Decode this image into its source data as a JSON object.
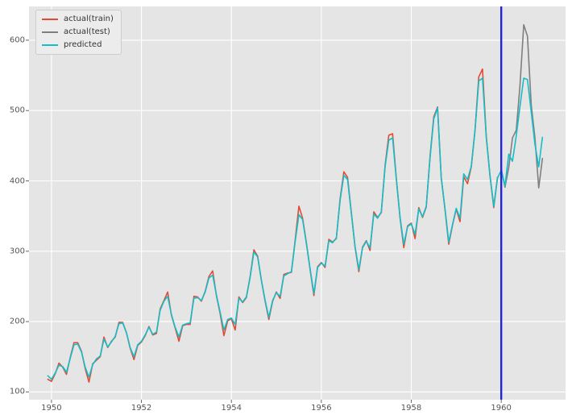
{
  "chart_data": {
    "type": "line",
    "title": "",
    "xlabel": "",
    "ylabel": "",
    "x_axis": {
      "ticks": [
        1950,
        1952,
        1954,
        1956,
        1958,
        1960
      ],
      "lim": [
        1949.5,
        1961.43
      ]
    },
    "y_axis": {
      "ticks": [
        100,
        200,
        300,
        400,
        500,
        600
      ],
      "lim": [
        89,
        648
      ]
    },
    "x_unit": "year, monthly samples",
    "grid": true,
    "legend": {
      "position": "upper left"
    },
    "style": {
      "plot_bg": "#e5e5e5",
      "grid_color": "#ffffff",
      "tick_color": "#555555",
      "figure_bg": "#ffffff"
    },
    "vline": {
      "x": 1960.0,
      "color": "#2222e0",
      "meaning": "train/test split"
    },
    "series": [
      {
        "name": "actual(train)",
        "color": "#e24a33",
        "x_start": 1949.9167,
        "x_step": 0.0833333,
        "values": [
          118,
          115,
          126,
          141,
          135,
          125,
          149,
          170,
          170,
          158,
          133,
          114,
          140,
          145,
          150,
          178,
          163,
          172,
          178,
          199,
          199,
          184,
          162,
          146,
          166,
          171,
          180,
          193,
          181,
          183,
          218,
          230,
          242,
          209,
          191,
          172,
          194,
          196,
          196,
          236,
          235,
          229,
          243,
          264,
          272,
          237,
          211,
          180,
          201,
          204,
          188,
          235,
          227,
          234,
          264,
          302,
          293,
          259,
          229,
          203,
          229,
          242,
          233,
          267,
          269,
          270,
          315,
          364,
          347,
          312,
          274,
          237,
          278,
          284,
          277,
          317,
          313,
          318,
          374,
          413,
          405,
          355,
          306,
          271,
          306,
          315,
          301,
          356,
          348,
          355,
          422,
          465,
          467,
          404,
          347,
          305,
          336,
          340,
          318,
          362,
          348,
          363,
          435,
          491,
          505,
          404,
          359,
          310,
          337,
          360,
          342,
          406,
          396,
          420,
          472,
          548,
          559,
          463,
          407,
          362,
          405
        ]
      },
      {
        "name": "actual(test)",
        "color": "#7f7f7f",
        "x_start": 1960.0,
        "x_step": 0.0833333,
        "values": [
          417,
          391,
          419,
          461,
          472,
          535,
          622,
          606,
          508,
          461,
          390,
          432
        ]
      },
      {
        "name": "predicted",
        "color": "#14bdc8",
        "x_start": 1949.9167,
        "x_step": 0.0833333,
        "values": [
          123,
          118,
          127,
          138,
          136,
          128,
          148,
          167,
          168,
          157,
          135,
          121,
          139,
          147,
          151,
          175,
          164,
          171,
          179,
          197,
          198,
          184,
          163,
          150,
          167,
          172,
          181,
          192,
          182,
          185,
          216,
          229,
          236,
          210,
          192,
          178,
          195,
          197,
          198,
          233,
          234,
          230,
          242,
          262,
          266,
          238,
          213,
          188,
          203,
          205,
          196,
          233,
          228,
          235,
          263,
          299,
          292,
          259,
          230,
          206,
          230,
          241,
          236,
          265,
          268,
          271,
          313,
          352,
          345,
          311,
          275,
          240,
          277,
          283,
          279,
          315,
          312,
          319,
          372,
          408,
          402,
          354,
          307,
          274,
          305,
          314,
          305,
          353,
          347,
          356,
          420,
          458,
          461,
          403,
          348,
          310,
          335,
          339,
          324,
          360,
          349,
          364,
          433,
          488,
          504,
          405,
          360,
          313,
          338,
          361,
          347,
          410,
          402,
          421,
          471,
          542,
          546,
          462,
          408,
          364,
          404,
          415,
          393,
          438,
          428,
          464,
          506,
          546,
          544,
          498,
          452,
          420,
          462
        ]
      }
    ]
  }
}
